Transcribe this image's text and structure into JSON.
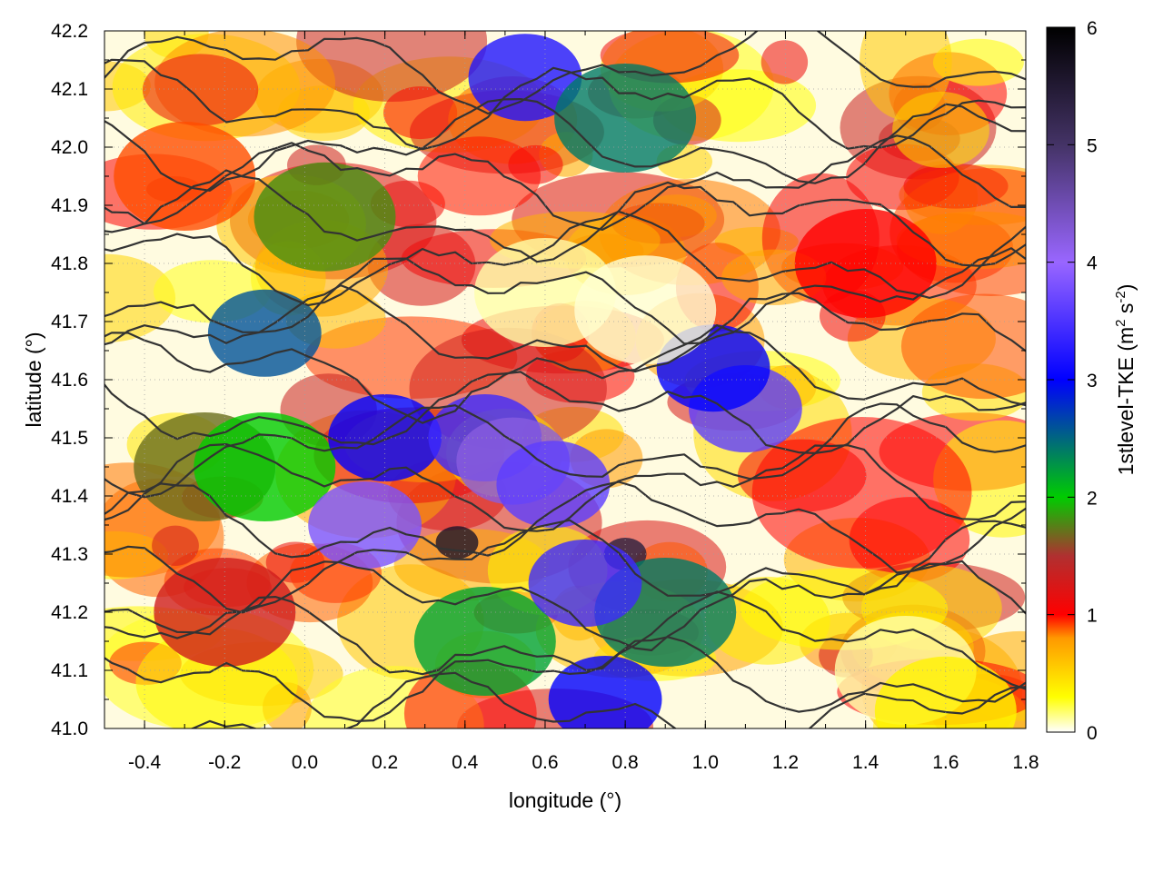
{
  "chart_data": {
    "type": "heatmap",
    "xlabel": "longitude (°)",
    "ylabel": "latitude (°)",
    "xlim": [
      -0.5,
      1.8
    ],
    "ylim": [
      41.0,
      42.2
    ],
    "xticks": [
      -0.4,
      -0.2,
      0.0,
      0.2,
      0.4,
      0.6,
      0.8,
      1.0,
      1.2,
      1.4,
      1.6,
      1.8
    ],
    "xtick_labels": [
      "-0.4",
      "-0.2",
      "0.0",
      "0.2",
      "0.4",
      "0.6",
      "0.8",
      "1.0",
      "1.2",
      "1.4",
      "1.6",
      "1.8"
    ],
    "yticks": [
      41.0,
      41.1,
      41.2,
      41.3,
      41.4,
      41.5,
      41.6,
      41.7,
      41.8,
      41.9,
      42.0,
      42.1,
      42.2
    ],
    "ytick_labels": [
      "41.0",
      "41.1",
      "41.2",
      "41.3",
      "41.4",
      "41.5",
      "41.6",
      "41.7",
      "41.8",
      "41.9",
      "42.0",
      "42.1",
      "42.2"
    ],
    "grid": true,
    "colorbar": {
      "label_main": "1stlevel-TKE (m",
      "sup1": "2",
      "label_mid": " s",
      "sup2": "-2",
      "label_end": ")",
      "range": [
        0,
        6
      ],
      "ticks": [
        0,
        1,
        2,
        3,
        4,
        5,
        6
      ],
      "tick_labels": [
        "0",
        "1",
        "2",
        "3",
        "4",
        "5",
        "6"
      ],
      "colormap": [
        {
          "value": 0.0,
          "color": "#ffffff"
        },
        {
          "value": 0.3,
          "color": "#ffff00"
        },
        {
          "value": 0.8,
          "color": "#ff9900"
        },
        {
          "value": 1.0,
          "color": "#ff0000"
        },
        {
          "value": 1.5,
          "color": "#b03030"
        },
        {
          "value": 2.0,
          "color": "#00cc00"
        },
        {
          "value": 3.0,
          "color": "#0000ff"
        },
        {
          "value": 4.0,
          "color": "#9966ff"
        },
        {
          "value": 5.0,
          "color": "#443366"
        },
        {
          "value": 6.0,
          "color": "#000000"
        }
      ]
    },
    "features": [
      {
        "lon": -0.1,
        "lat": 41.68,
        "tke": 2.6
      },
      {
        "lon": -0.25,
        "lat": 41.45,
        "tke": 1.7
      },
      {
        "lon": -0.1,
        "lat": 41.45,
        "tke": 2.0
      },
      {
        "lon": 0.05,
        "lat": 41.88,
        "tke": 1.8
      },
      {
        "lon": 0.2,
        "lat": 41.5,
        "tke": 3.0
      },
      {
        "lon": 0.45,
        "lat": 41.5,
        "tke": 3.4
      },
      {
        "lon": 0.52,
        "lat": 41.46,
        "tke": 4.2
      },
      {
        "lon": 0.62,
        "lat": 41.42,
        "tke": 3.6
      },
      {
        "lon": 0.38,
        "lat": 41.32,
        "tke": 5.6
      },
      {
        "lon": 0.8,
        "lat": 41.3,
        "tke": 5.4
      },
      {
        "lon": 1.1,
        "lat": 41.55,
        "tke": 3.6
      },
      {
        "lon": 1.02,
        "lat": 41.62,
        "tke": 3.0
      },
      {
        "lon": 0.9,
        "lat": 41.2,
        "tke": 2.4
      },
      {
        "lon": 0.55,
        "lat": 42.12,
        "tke": 3.2
      },
      {
        "lon": 0.8,
        "lat": 42.05,
        "tke": 2.4
      },
      {
        "lon": 0.45,
        "lat": 41.15,
        "tke": 2.2
      },
      {
        "lon": 0.15,
        "lat": 41.35,
        "tke": 3.8
      },
      {
        "lon": 0.7,
        "lat": 41.25,
        "tke": 3.4
      },
      {
        "lon": 0.75,
        "lat": 41.05,
        "tke": 3.0
      },
      {
        "lon": 0.6,
        "lat": 41.75,
        "tke": 0.1
      },
      {
        "lon": 0.85,
        "lat": 41.72,
        "tke": 0.05
      },
      {
        "lon": 1.5,
        "lat": 41.1,
        "tke": 0.1
      },
      {
        "lon": 1.6,
        "lat": 41.03,
        "tke": 0.35
      },
      {
        "lon": 1.4,
        "lat": 41.8,
        "tke": 1.0
      },
      {
        "lon": -0.3,
        "lat": 41.95,
        "tke": 0.9
      },
      {
        "lon": -0.2,
        "lat": 41.2,
        "tke": 1.3
      }
    ]
  }
}
